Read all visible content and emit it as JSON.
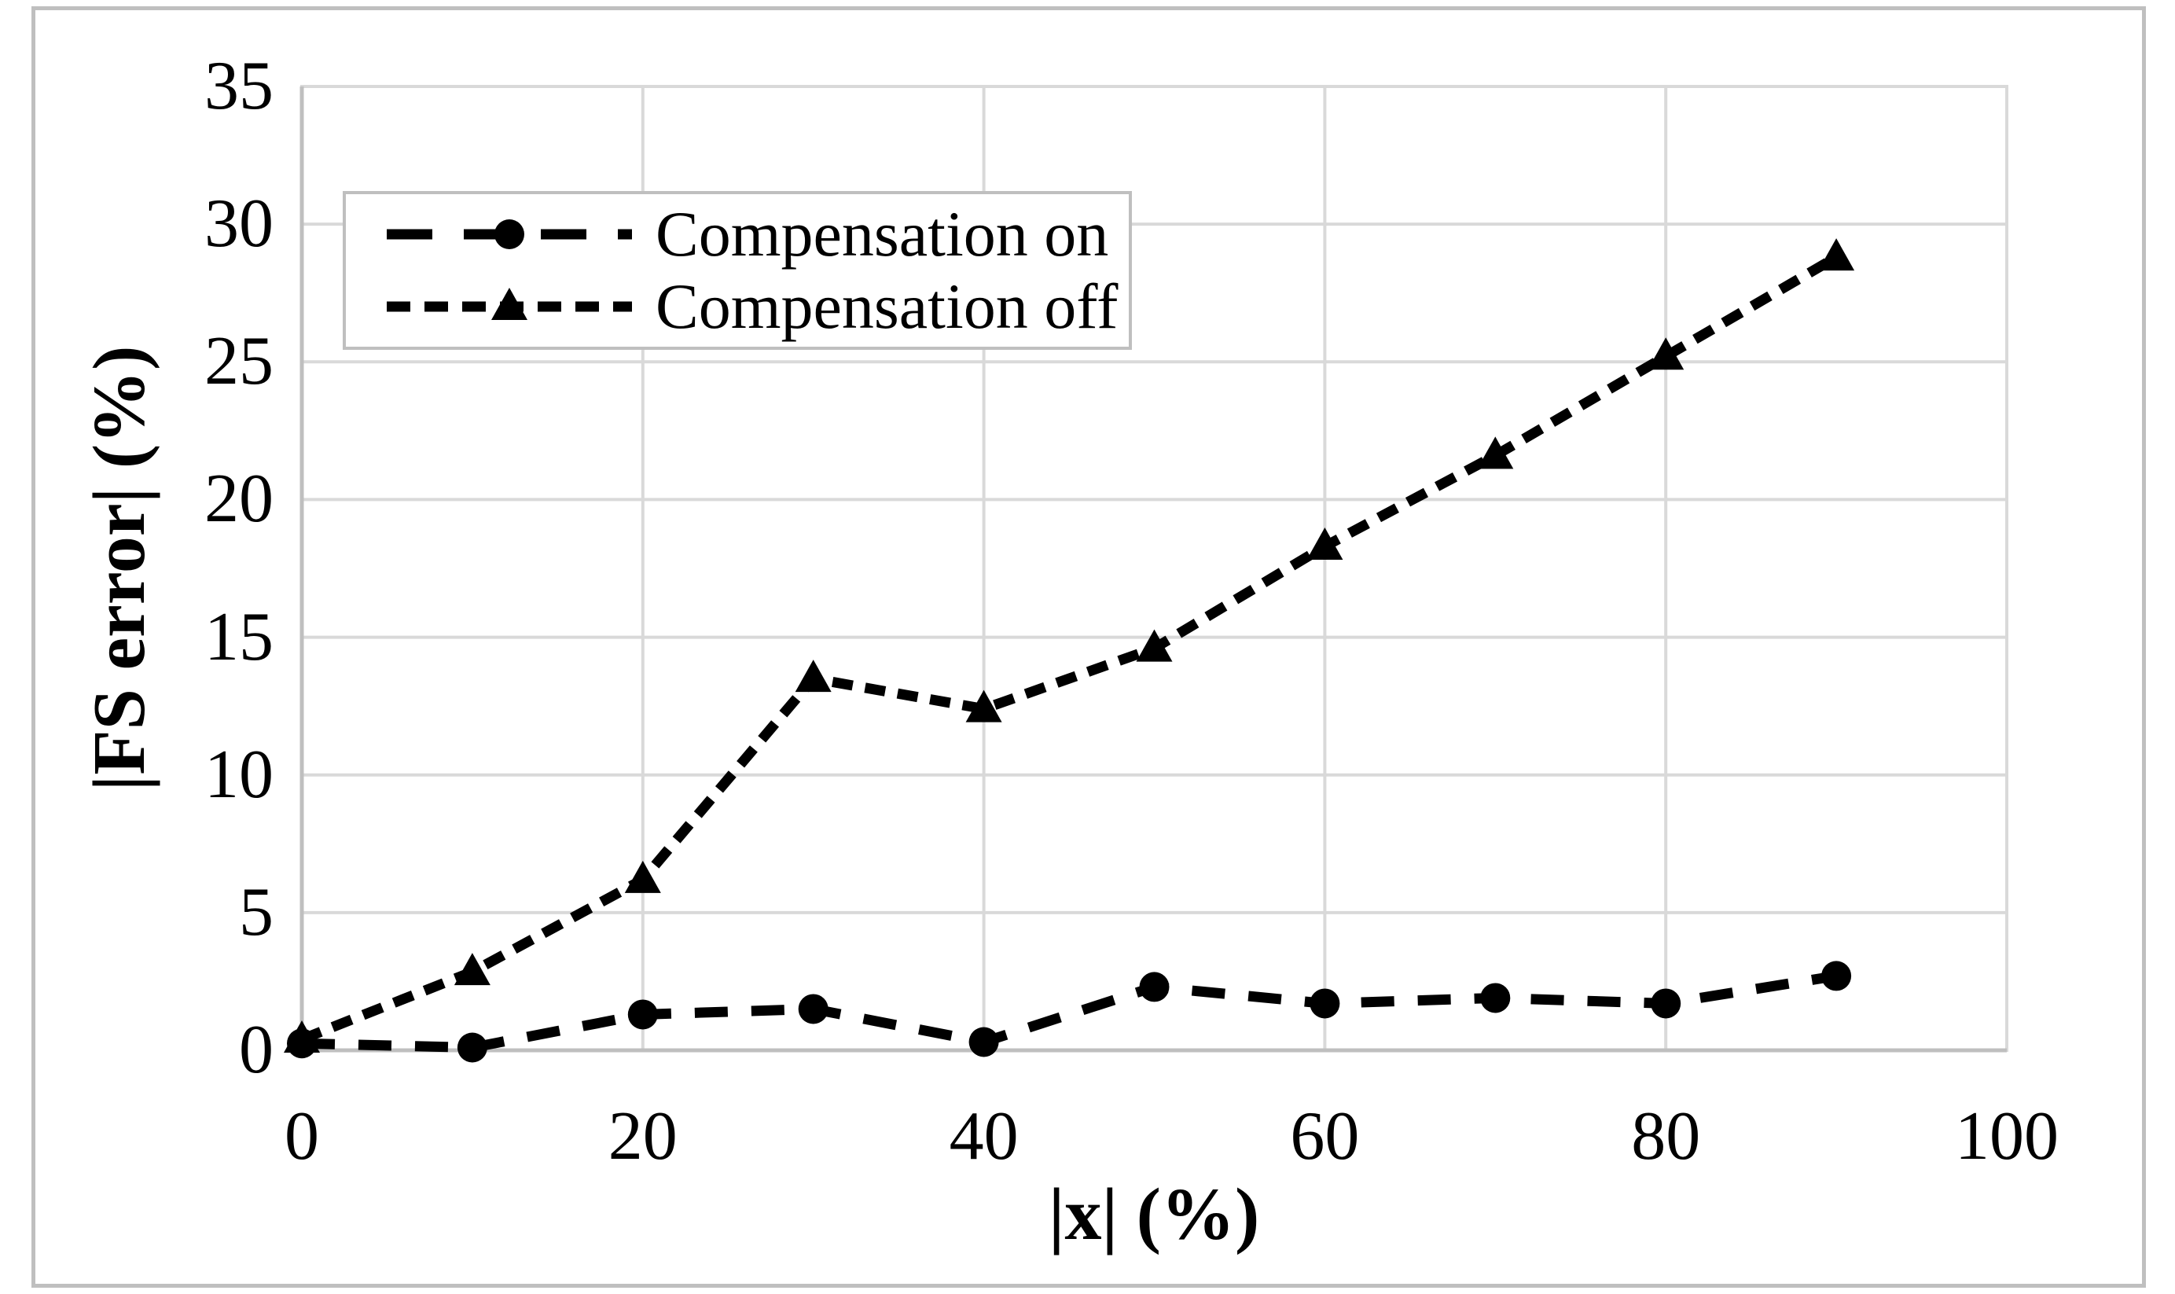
{
  "figure": {
    "description": "Scatter line chart comparing full-scale error with compensation on vs off"
  },
  "chart_data": {
    "type": "line",
    "title": "",
    "xlabel": "|x| (%)",
    "ylabel": "|FS error| (%)",
    "x": [
      0,
      10,
      20,
      30,
      40,
      50,
      60,
      70,
      80,
      90
    ],
    "series": [
      {
        "name": "Compensation on",
        "marker": "circle",
        "dash": "long",
        "color": "#000000",
        "values": [
          0.25,
          0.1,
          1.3,
          1.5,
          0.3,
          2.3,
          1.7,
          1.9,
          1.7,
          2.7
        ]
      },
      {
        "name": "Compensation off",
        "marker": "triangle",
        "dash": "short",
        "color": "#000000",
        "values": [
          0.4,
          2.85,
          6.2,
          13.5,
          12.4,
          14.6,
          18.3,
          21.6,
          25.2,
          28.8
        ]
      }
    ],
    "xlim": [
      0,
      100
    ],
    "ylim": [
      0,
      35
    ],
    "x_ticks": [
      0,
      20,
      40,
      60,
      80,
      100
    ],
    "y_ticks": [
      0,
      5,
      10,
      15,
      20,
      25,
      30,
      35
    ],
    "grid": true,
    "legend_position": "top-left-inside",
    "colors": {
      "gridline": "#d9d9d9",
      "axis_line": "#bfbfbf",
      "frame_border": "#bfbfbf",
      "legend_border": "#bfbfbf",
      "series": "#000000",
      "background": "#ffffff"
    }
  }
}
